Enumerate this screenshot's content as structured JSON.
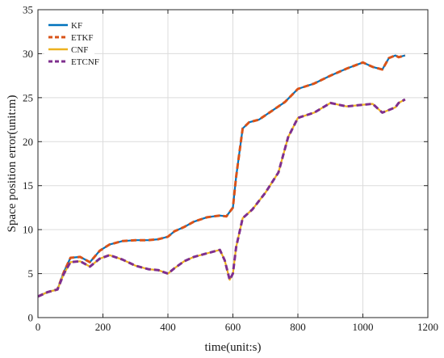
{
  "chart_data": {
    "type": "line",
    "xlabel": "time(unit:s)",
    "ylabel": "Space position error(unit:m)",
    "xlim": [
      0,
      1200
    ],
    "ylim": [
      0,
      35
    ],
    "xticks": [
      0,
      200,
      400,
      600,
      800,
      1000,
      1200
    ],
    "yticks": [
      0,
      5,
      10,
      15,
      20,
      25,
      30,
      35
    ],
    "grid": true,
    "legend_position": "top-left",
    "series": [
      {
        "name": "KF",
        "color": "#0072BD",
        "dash": "solid",
        "x": [
          0,
          30,
          60,
          80,
          100,
          130,
          160,
          190,
          220,
          260,
          300,
          340,
          370,
          400,
          420,
          450,
          480,
          520,
          560,
          580,
          600,
          610,
          630,
          650,
          680,
          720,
          760,
          800,
          850,
          900,
          950,
          1000,
          1030,
          1060,
          1080,
          1100,
          1110,
          1130
        ],
        "y": [
          2.4,
          2.9,
          3.2,
          5.2,
          6.8,
          6.9,
          6.3,
          7.6,
          8.3,
          8.7,
          8.8,
          8.8,
          8.9,
          9.2,
          9.8,
          10.3,
          10.9,
          11.4,
          11.6,
          11.5,
          12.5,
          16.0,
          21.5,
          22.2,
          22.5,
          23.5,
          24.5,
          26.0,
          26.6,
          27.5,
          28.3,
          29.0,
          28.5,
          28.2,
          29.5,
          29.8,
          29.6,
          29.8
        ]
      },
      {
        "name": "ETKF",
        "color": "#D95319",
        "dash": "dashed",
        "x": [
          0,
          30,
          60,
          80,
          100,
          130,
          160,
          190,
          220,
          260,
          300,
          340,
          370,
          400,
          420,
          450,
          480,
          520,
          560,
          580,
          600,
          610,
          630,
          650,
          680,
          720,
          760,
          800,
          850,
          900,
          950,
          1000,
          1030,
          1060,
          1080,
          1100,
          1110,
          1130
        ],
        "y": [
          2.4,
          2.9,
          3.2,
          5.2,
          6.8,
          6.9,
          6.3,
          7.6,
          8.3,
          8.7,
          8.8,
          8.8,
          8.9,
          9.2,
          9.8,
          10.3,
          10.9,
          11.4,
          11.6,
          11.5,
          12.5,
          16.0,
          21.5,
          22.2,
          22.5,
          23.5,
          24.5,
          26.0,
          26.6,
          27.5,
          28.3,
          29.0,
          28.5,
          28.2,
          29.5,
          29.8,
          29.6,
          29.8
        ]
      },
      {
        "name": "CNF",
        "color": "#EDB120",
        "dash": "solid",
        "x": [
          0,
          30,
          60,
          80,
          100,
          130,
          160,
          190,
          220,
          260,
          300,
          340,
          370,
          400,
          420,
          450,
          480,
          520,
          560,
          575,
          590,
          600,
          610,
          630,
          660,
          700,
          740,
          770,
          800,
          850,
          900,
          950,
          1000,
          1030,
          1060,
          1080,
          1100,
          1110,
          1130
        ],
        "y": [
          2.4,
          2.9,
          3.2,
          5.0,
          6.3,
          6.4,
          5.8,
          6.7,
          7.1,
          6.6,
          5.9,
          5.5,
          5.4,
          5.0,
          5.6,
          6.4,
          6.9,
          7.3,
          7.7,
          6.5,
          4.3,
          5.0,
          8.0,
          11.3,
          12.3,
          14.2,
          16.5,
          20.5,
          22.7,
          23.3,
          24.4,
          24.0,
          24.2,
          24.3,
          23.3,
          23.6,
          23.9,
          24.4,
          24.8
        ]
      },
      {
        "name": "ETCNF",
        "color": "#7E2F8E",
        "dash": "dashed",
        "x": [
          0,
          30,
          60,
          80,
          100,
          130,
          160,
          190,
          220,
          260,
          300,
          340,
          370,
          400,
          420,
          450,
          480,
          520,
          560,
          575,
          590,
          600,
          610,
          630,
          660,
          700,
          740,
          770,
          800,
          850,
          900,
          950,
          1000,
          1030,
          1060,
          1080,
          1100,
          1110,
          1130
        ],
        "y": [
          2.4,
          2.9,
          3.2,
          5.0,
          6.3,
          6.4,
          5.8,
          6.7,
          7.1,
          6.6,
          5.9,
          5.5,
          5.4,
          5.0,
          5.6,
          6.4,
          6.9,
          7.3,
          7.7,
          6.5,
          4.3,
          5.0,
          8.0,
          11.3,
          12.3,
          14.2,
          16.5,
          20.5,
          22.7,
          23.3,
          24.4,
          24.0,
          24.2,
          24.3,
          23.3,
          23.6,
          23.9,
          24.4,
          24.8
        ]
      }
    ]
  }
}
